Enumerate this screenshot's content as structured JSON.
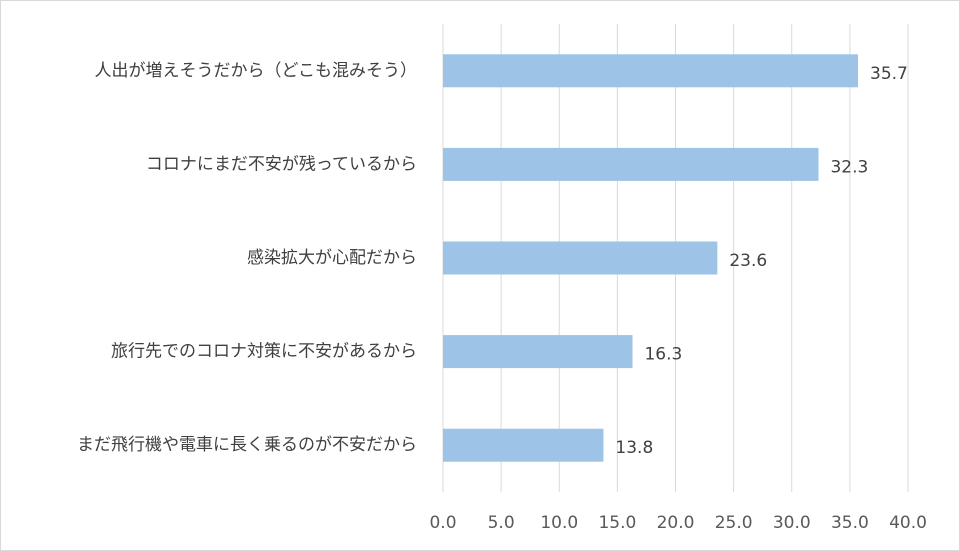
{
  "chart_data": {
    "type": "bar",
    "orientation": "horizontal",
    "categories": [
      "人出が増えそうだから（どこも混みそう）",
      "コロナにまだ不安が残っているから",
      "感染拡大が心配だから",
      "旅行先でのコロナ対策に不安があるから",
      "まだ飛行機や電車に長く乗るのが不安だから"
    ],
    "values": [
      35.7,
      32.3,
      23.6,
      16.3,
      13.8
    ],
    "value_labels": [
      "35.7",
      "32.3",
      "23.6",
      "16.3",
      "13.8"
    ],
    "xlim": [
      0,
      40
    ],
    "x_ticks": [
      0,
      5,
      10,
      15,
      20,
      25,
      30,
      35,
      40
    ],
    "x_tick_labels": [
      "0.0",
      "5.0",
      "10.0",
      "15.0",
      "20.0",
      "25.0",
      "30.0",
      "35.0",
      "40.0"
    ],
    "grid": "vertical",
    "legend": "none",
    "title": "",
    "xlabel": "",
    "ylabel": ""
  },
  "colors": {
    "bar": "#9dc3e6",
    "grid": "#d9d9d9",
    "text": "#404040"
  }
}
